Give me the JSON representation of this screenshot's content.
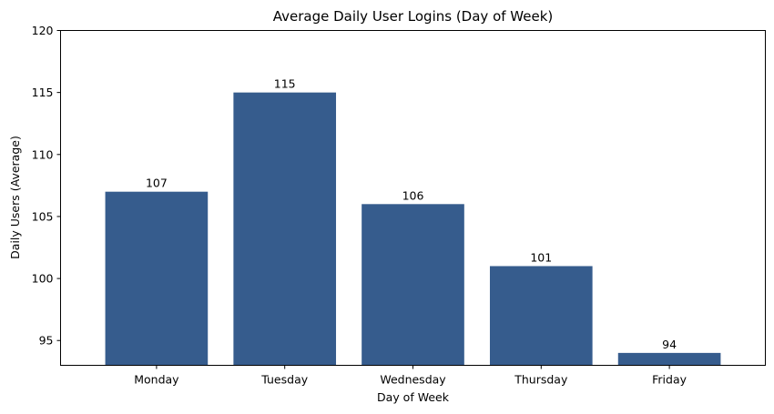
{
  "chart_data": {
    "type": "bar",
    "title": "Average Daily User Logins (Day of Week)",
    "xlabel": "Day of Week",
    "ylabel": "Daily Users (Average)",
    "categories": [
      "Monday",
      "Tuesday",
      "Wednesday",
      "Thursday",
      "Friday"
    ],
    "values": [
      107,
      115,
      106,
      101,
      94
    ],
    "data_labels": [
      "107",
      "115",
      "106",
      "101",
      "94"
    ],
    "ylim": [
      93,
      120
    ],
    "yticks": [
      95,
      100,
      105,
      110,
      115,
      120
    ],
    "bar_color": "#365c8d",
    "grid": false,
    "legend": "none"
  }
}
